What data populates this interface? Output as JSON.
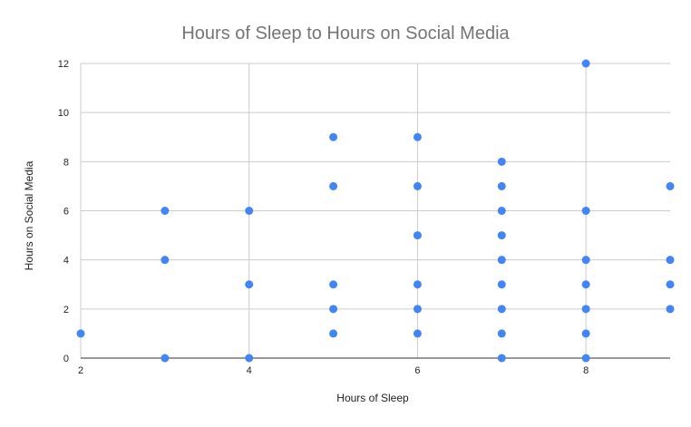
{
  "chart_data": {
    "type": "scatter",
    "title": "Hours of Sleep to Hours on Social Media",
    "xlabel": "Hours of Sleep",
    "ylabel": "Hours on Social Media",
    "xlim": [
      2,
      9
    ],
    "ylim": [
      0,
      12
    ],
    "xticks": [
      2,
      4,
      6,
      8
    ],
    "yticks": [
      0,
      2,
      4,
      6,
      8,
      10,
      12
    ],
    "grid": true,
    "legend": "none",
    "series": [
      {
        "color": "#4285f4",
        "points": [
          [
            2,
            1
          ],
          [
            3,
            6
          ],
          [
            3,
            4
          ],
          [
            3,
            0
          ],
          [
            4,
            6
          ],
          [
            4,
            3
          ],
          [
            4,
            0
          ],
          [
            5,
            9
          ],
          [
            5,
            7
          ],
          [
            5,
            3
          ],
          [
            5,
            2
          ],
          [
            5,
            1
          ],
          [
            6,
            9
          ],
          [
            6,
            7
          ],
          [
            6,
            5
          ],
          [
            6,
            3
          ],
          [
            6,
            2
          ],
          [
            6,
            1
          ],
          [
            7,
            8
          ],
          [
            7,
            7
          ],
          [
            7,
            6
          ],
          [
            7,
            5
          ],
          [
            7,
            4
          ],
          [
            7,
            3
          ],
          [
            7,
            2
          ],
          [
            7,
            1
          ],
          [
            7,
            0
          ],
          [
            8,
            12
          ],
          [
            8,
            6
          ],
          [
            8,
            4
          ],
          [
            8,
            3
          ],
          [
            8,
            2
          ],
          [
            8,
            1
          ],
          [
            8,
            0
          ],
          [
            9,
            7
          ],
          [
            9,
            4
          ],
          [
            9,
            3
          ],
          [
            9,
            2
          ]
        ]
      }
    ]
  },
  "colors": {
    "grid": "#cccccc",
    "axis": "#333333",
    "point": "#4285f4"
  }
}
